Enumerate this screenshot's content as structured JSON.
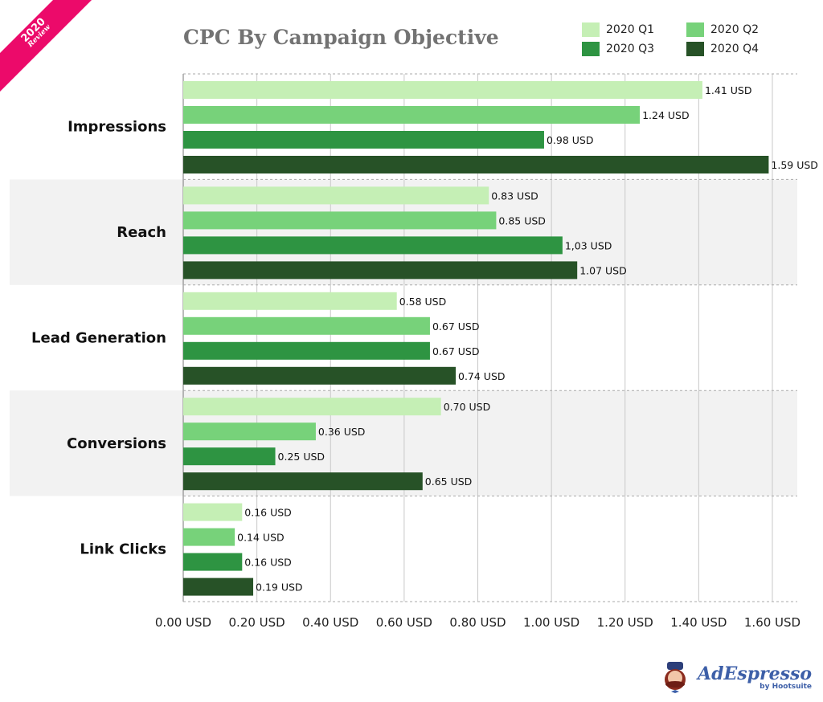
{
  "badge": {
    "year": "2020",
    "label": "Review"
  },
  "logo": {
    "name": "AdEspresso",
    "byline": "by Hootsuite"
  },
  "chart_data": {
    "type": "bar",
    "orientation": "horizontal",
    "title": "CPC By Campaign Objective",
    "categories": [
      "Impressions",
      "Reach",
      "Lead Generation",
      "Conversions",
      "Link Clicks"
    ],
    "series": [
      {
        "name": "2020 Q1",
        "color": "#c5efb5",
        "values": [
          1.41,
          0.83,
          0.58,
          0.7,
          0.16
        ],
        "labels": [
          "1.41 USD",
          "0.83 USD",
          "0.58 USD",
          "0.70 USD",
          "0.16 USD"
        ]
      },
      {
        "name": "2020 Q2",
        "color": "#77d27a",
        "values": [
          1.24,
          0.85,
          0.67,
          0.36,
          0.14
        ],
        "labels": [
          "1.24 USD",
          "0.85 USD",
          "0.67 USD",
          "0.36 USD",
          "0.14 USD"
        ]
      },
      {
        "name": "2020 Q3",
        "color": "#2e9442",
        "values": [
          0.98,
          1.03,
          0.67,
          0.25,
          0.16
        ],
        "labels": [
          "0.98 USD",
          "1,03 USD",
          "0.67 USD",
          "0.25 USD",
          "0.16 USD"
        ]
      },
      {
        "name": "2020 Q4",
        "color": "#275227",
        "values": [
          1.59,
          1.07,
          0.74,
          0.65,
          0.19
        ],
        "labels": [
          "1.59 USD",
          "1.07 USD",
          "0.74 USD",
          "0.65 USD",
          "0.19 USD"
        ]
      }
    ],
    "xlim": [
      0,
      1.6
    ],
    "xticks": [
      0,
      0.2,
      0.4,
      0.6,
      0.8,
      1.0,
      1.2,
      1.4,
      1.6
    ],
    "xtick_labels": [
      "0.00 USD",
      "0.20 USD",
      "0.40 USD",
      "0.60 USD",
      "0.80 USD",
      "1.00 USD",
      "1.20 USD",
      "1.40 USD",
      "1.60 USD"
    ],
    "grid": true,
    "legend_position": "top-right"
  }
}
